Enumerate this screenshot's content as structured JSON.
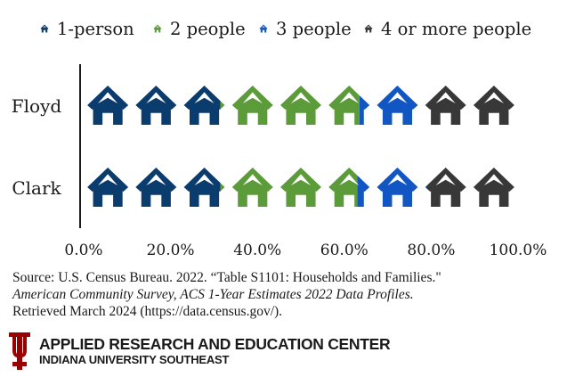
{
  "chart_data": {
    "type": "bar",
    "subtype": "stacked-pictogram",
    "orientation": "horizontal",
    "categories": [
      "Floyd",
      "Clark"
    ],
    "series": [
      {
        "name": "1-person",
        "values": [
          31.5,
          31.5
        ],
        "color": "#0b3c6e"
      },
      {
        "name": "2 people",
        "values": [
          32.0,
          31.5
        ],
        "color": "#5c9b3a"
      },
      {
        "name": "3 people",
        "values": [
          13.0,
          16.0
        ],
        "color": "#1256c4"
      },
      {
        "name": "4 or more people",
        "values": [
          23.5,
          21.0
        ],
        "color": "#383838"
      }
    ],
    "xlim": [
      0,
      100
    ],
    "xticks": [
      "0.0%",
      "20.0%",
      "40.0%",
      "60.0%",
      "80.0%",
      "100.0%"
    ],
    "legend_position": "top",
    "grid": false
  },
  "source": {
    "line1": "Source: U.S. Census Bureau. 2022. “Table S1101: Households and Families.\"",
    "line2": "American Community Survey, ACS 1-Year Estimates 2022 Data Profiles.",
    "line3": "Retrieved March 2024 (https://data.census.gov/)."
  },
  "footer": {
    "org_name": "APPLIED RESEARCH AND EDUCATION CENTER",
    "org_sub": "INDIANA UNIVERSITY SOUTHEAST",
    "logo_color": "#990000"
  }
}
